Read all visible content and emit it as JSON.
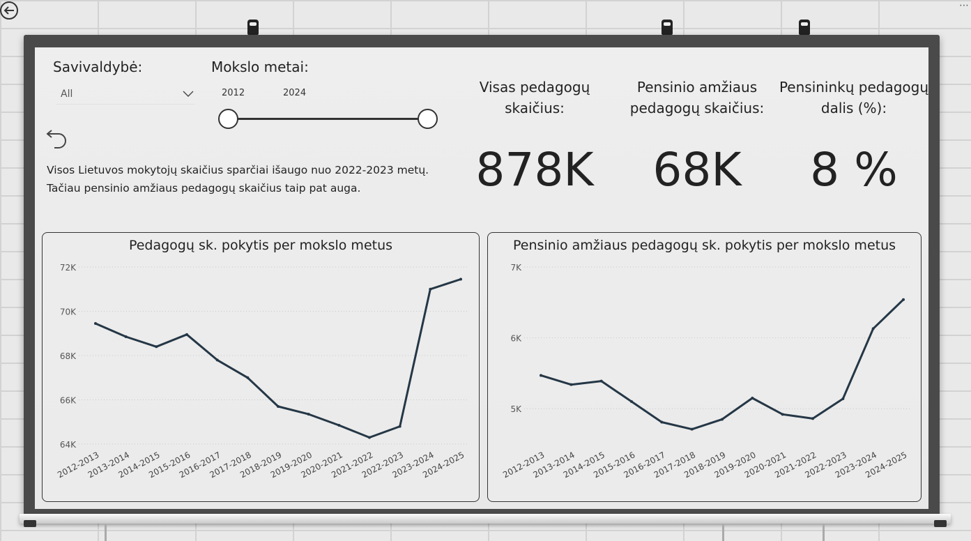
{
  "filters": {
    "municipality_label": "Savivaldybė:",
    "municipality_value": "All",
    "years_label": "Mokslo metai:",
    "year_from": "2012",
    "year_to": "2024"
  },
  "note": {
    "line1": "Visos Lietuvos mokytojų skaičius sparčiai išaugo nuo 2022-2023 metų.",
    "line2": "Tačiau pensinio amžiaus pedagogų skaičius taip pat auga."
  },
  "kpis": [
    {
      "title_line1": "Visas pedagogų",
      "title_line2": "skaičius:",
      "value": "878K"
    },
    {
      "title_line1": "Pensinio amžiaus",
      "title_line2": "pedagogų skaičius:",
      "value": "68K"
    },
    {
      "title_line1": "Pensininkų pedagogų",
      "title_line2": "dalis (%):",
      "value": "8 %"
    }
  ],
  "colors": {
    "line": "#253746",
    "grid": "#c8c8c8"
  },
  "chart_data": [
    {
      "type": "line",
      "title": "Pedagogų sk. pokytis per mokslo metus",
      "xlabel": "",
      "ylabel": "",
      "categories": [
        "2012-2013",
        "2013-2014",
        "2014-2015",
        "2015-2016",
        "2016-2017",
        "2017-2018",
        "2018-2019",
        "2019-2020",
        "2020-2021",
        "2021-2022",
        "2022-2023",
        "2023-2024",
        "2024-2025"
      ],
      "values": [
        69450,
        68850,
        68400,
        68950,
        67800,
        67000,
        65700,
        65350,
        64850,
        64300,
        64800,
        71000,
        71450
      ],
      "ylim": [
        64000,
        72000
      ],
      "yticks": [
        64000,
        66000,
        68000,
        70000,
        72000
      ],
      "ytick_labels": [
        "64K",
        "66K",
        "68K",
        "70K",
        "72K"
      ],
      "grid": true
    },
    {
      "type": "line",
      "title": "Pensinio amžiaus pedagogų sk. pokytis per mokslo metus",
      "xlabel": "",
      "ylabel": "",
      "categories": [
        "2012-2013",
        "2013-2014",
        "2014-2015",
        "2015-2016",
        "2016-2017",
        "2017-2018",
        "2018-2019",
        "2019-2020",
        "2020-2021",
        "2021-2022",
        "2022-2023",
        "2023-2024",
        "2024-2025"
      ],
      "values": [
        5470,
        5340,
        5390,
        5100,
        4810,
        4710,
        4850,
        5150,
        4920,
        4860,
        5140,
        6130,
        6540
      ],
      "ylim": [
        4500,
        7000
      ],
      "yticks": [
        5000,
        6000,
        7000
      ],
      "ytick_labels": [
        "5K",
        "6K",
        "7K"
      ],
      "grid": true
    }
  ]
}
